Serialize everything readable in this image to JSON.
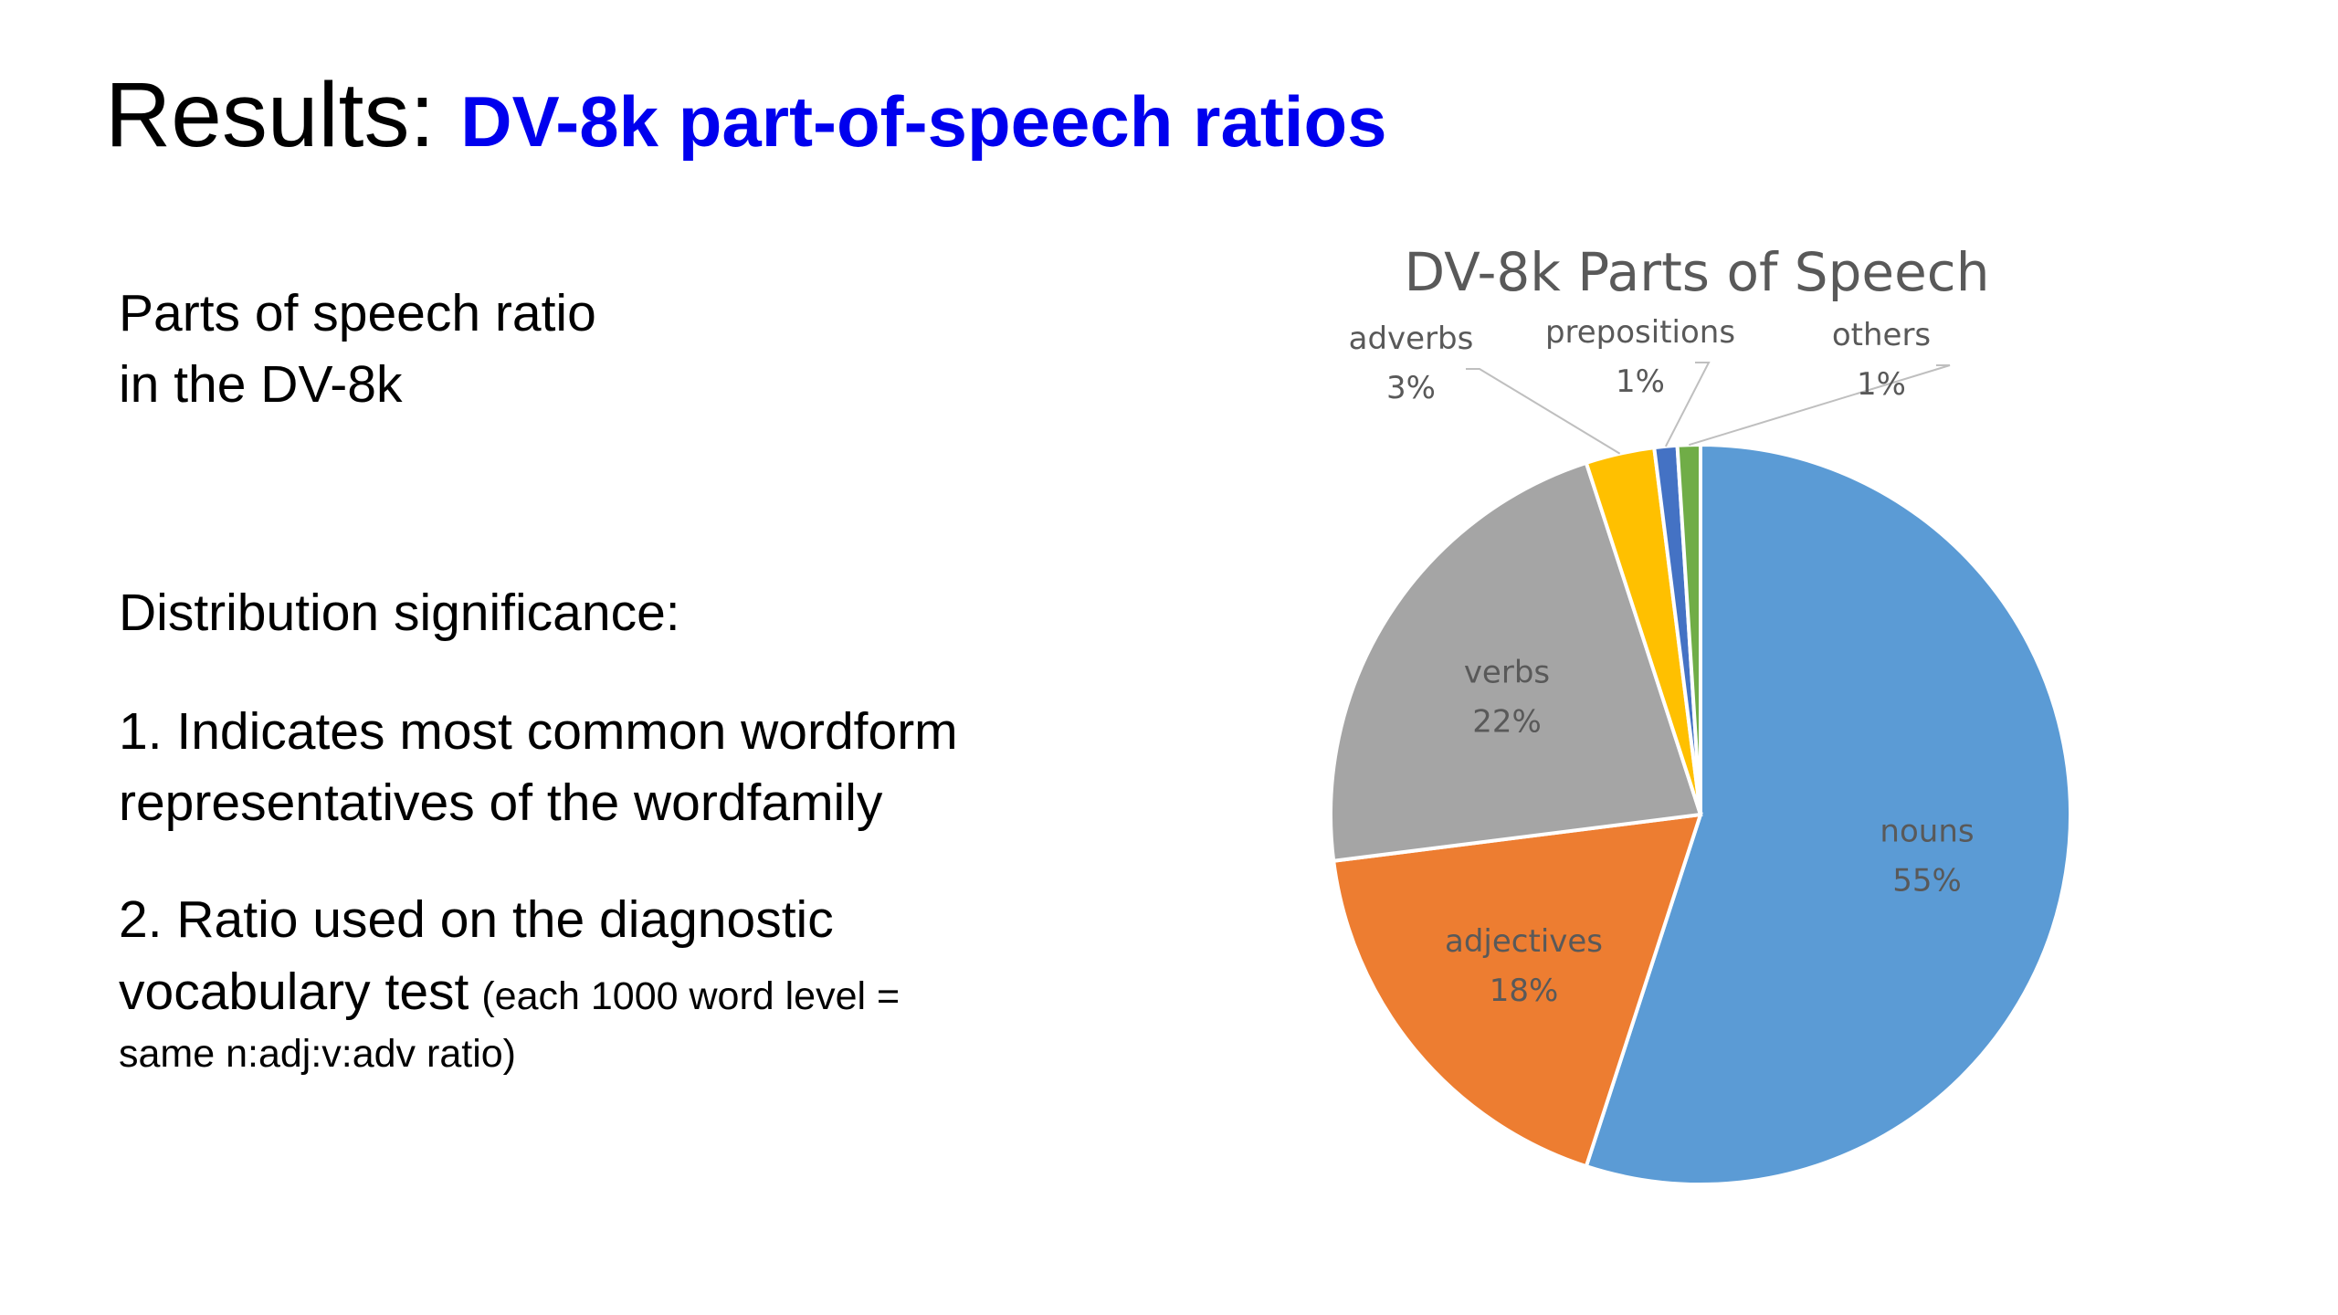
{
  "slide": {
    "title_prefix": "Results:",
    "title": "DV-8k part-of-speech ratios",
    "body": [
      "Parts of speech ratio",
      "in the DV-8k",
      "Distribution significance:",
      "1. Indicates most common wordform",
      "representatives of the wordfamily",
      "2. Ratio used on the diagnostic",
      "vocabulary test",
      "(each 1000 word level =",
      "same n:adj:v:adv ratio)"
    ]
  },
  "chart_data": {
    "type": "pie",
    "title": "DV-8k Parts of Speech",
    "categories": [
      "nouns",
      "adjectives",
      "verbs",
      "adverbs",
      "prepositions",
      "others"
    ],
    "values": [
      55,
      18,
      22,
      3,
      1,
      1
    ],
    "value_labels": [
      "55%",
      "18%",
      "22%",
      "3%",
      "1%",
      "1%"
    ],
    "colors": [
      "#5b9bd5",
      "#ed7d31",
      "#a5a5a5",
      "#ffc000",
      "#4472c4",
      "#70ad47"
    ]
  }
}
